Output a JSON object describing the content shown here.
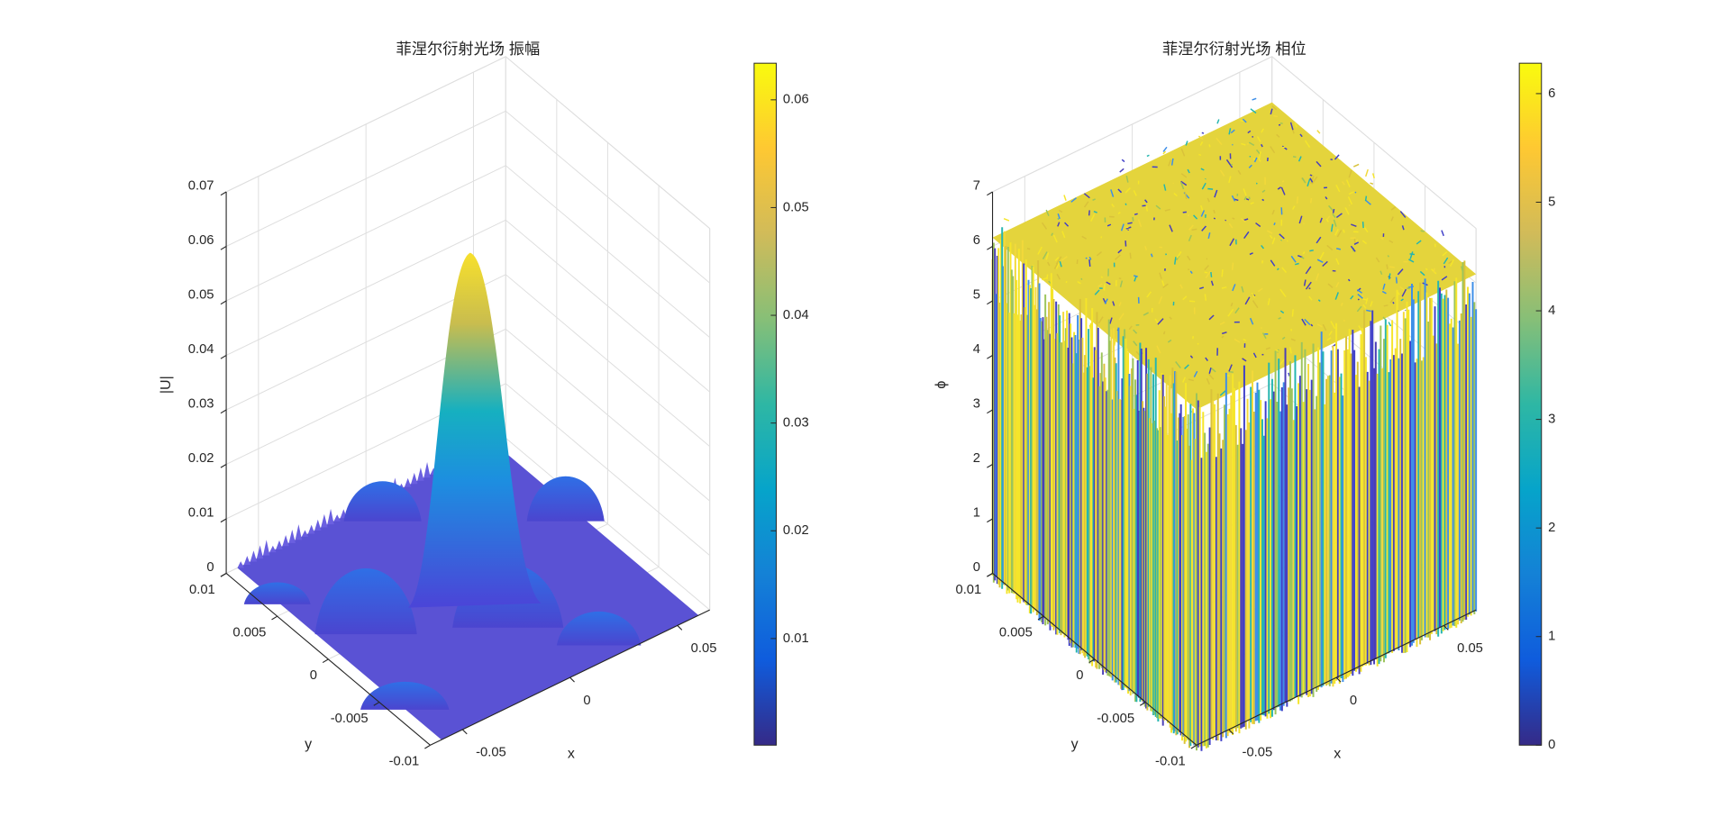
{
  "chart_data": [
    {
      "type": "surface",
      "title": "菲涅尔衍射光场 振幅",
      "xlabel": "x",
      "ylabel": "y",
      "zlabel": "|U|",
      "xlim": [
        -0.065,
        0.065
      ],
      "xticks": [
        -0.05,
        0,
        0.05
      ],
      "ylim": [
        -0.01,
        0.01
      ],
      "yticks": [
        -0.01,
        -0.005,
        0,
        0.005,
        0.01
      ],
      "zlim": [
        0,
        0.07
      ],
      "zticks": [
        0,
        0.01,
        0.02,
        0.03,
        0.04,
        0.05,
        0.06,
        0.07
      ],
      "colormap": "parula",
      "grid": true,
      "colorbar": {
        "clim": [
          0.0001,
          0.0634
        ],
        "ticks": [
          0.01,
          0.02,
          0.03,
          0.04,
          0.05,
          0.06
        ]
      }
    },
    {
      "type": "surface",
      "title": "菲涅尔衍射光场 相位",
      "xlabel": "x",
      "ylabel": "y",
      "zlabel": "ϕ",
      "xlim": [
        -0.065,
        0.065
      ],
      "xticks": [
        -0.05,
        0,
        0.05
      ],
      "ylim": [
        -0.01,
        0.01
      ],
      "yticks": [
        -0.01,
        -0.005,
        0,
        0.005,
        0.01
      ],
      "zlim": [
        0,
        7
      ],
      "zticks": [
        0,
        1,
        2,
        3,
        4,
        5,
        6,
        7
      ],
      "colormap": "parula",
      "grid": true,
      "colorbar": {
        "clim": [
          0,
          6.28
        ],
        "ticks": [
          0,
          1,
          2,
          3,
          4,
          5,
          6
        ]
      }
    }
  ]
}
